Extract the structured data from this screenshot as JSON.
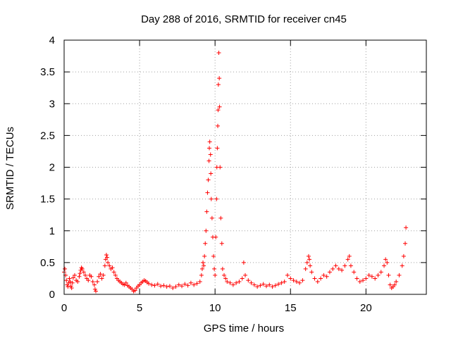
{
  "chart_data": {
    "type": "scatter",
    "title": "Day 288 of 2016, SRMTID for receiver cn45",
    "xlabel": "GPS time / hours",
    "ylabel": "SRMTID / TECUs",
    "xlim": [
      0,
      24
    ],
    "ylim": [
      0,
      4
    ],
    "xticks": [
      0,
      5,
      10,
      15,
      20
    ],
    "yticks": [
      0,
      0.5,
      1,
      1.5,
      2,
      2.5,
      3,
      3.5,
      4
    ],
    "xtick_labels": [
      "0",
      "5",
      "10",
      "15",
      "20"
    ],
    "ytick_labels": [
      "0",
      "0.5",
      "1",
      "1.5",
      "2",
      "2.5",
      "3",
      "3.5",
      "4"
    ],
    "grid": true,
    "marker": "+",
    "color": "#ff0000",
    "series": [
      {
        "name": "SRMTID",
        "points": [
          [
            0.0,
            0.35
          ],
          [
            0.05,
            0.4
          ],
          [
            0.1,
            0.3
          ],
          [
            0.15,
            0.22
          ],
          [
            0.2,
            0.15
          ],
          [
            0.25,
            0.12
          ],
          [
            0.3,
            0.18
          ],
          [
            0.35,
            0.25
          ],
          [
            0.4,
            0.2
          ],
          [
            0.45,
            0.13
          ],
          [
            0.5,
            0.1
          ],
          [
            0.55,
            0.18
          ],
          [
            0.6,
            0.26
          ],
          [
            0.7,
            0.3
          ],
          [
            0.8,
            0.22
          ],
          [
            0.9,
            0.2
          ],
          [
            1.0,
            0.28
          ],
          [
            1.05,
            0.33
          ],
          [
            1.1,
            0.38
          ],
          [
            1.15,
            0.42
          ],
          [
            1.2,
            0.4
          ],
          [
            1.3,
            0.35
          ],
          [
            1.4,
            0.3
          ],
          [
            1.5,
            0.25
          ],
          [
            1.6,
            0.22
          ],
          [
            1.7,
            0.3
          ],
          [
            1.8,
            0.28
          ],
          [
            1.9,
            0.2
          ],
          [
            2.0,
            0.15
          ],
          [
            2.05,
            0.08
          ],
          [
            2.1,
            0.05
          ],
          [
            2.2,
            0.2
          ],
          [
            2.3,
            0.28
          ],
          [
            2.4,
            0.32
          ],
          [
            2.5,
            0.25
          ],
          [
            2.6,
            0.3
          ],
          [
            2.7,
            0.45
          ],
          [
            2.75,
            0.55
          ],
          [
            2.8,
            0.62
          ],
          [
            2.85,
            0.58
          ],
          [
            2.9,
            0.5
          ],
          [
            3.0,
            0.45
          ],
          [
            3.1,
            0.4
          ],
          [
            3.2,
            0.42
          ],
          [
            3.3,
            0.35
          ],
          [
            3.4,
            0.3
          ],
          [
            3.5,
            0.25
          ],
          [
            3.6,
            0.22
          ],
          [
            3.7,
            0.2
          ],
          [
            3.8,
            0.18
          ],
          [
            3.9,
            0.16
          ],
          [
            4.0,
            0.15
          ],
          [
            4.1,
            0.18
          ],
          [
            4.2,
            0.14
          ],
          [
            4.3,
            0.12
          ],
          [
            4.4,
            0.1
          ],
          [
            4.5,
            0.08
          ],
          [
            4.6,
            0.05
          ],
          [
            4.7,
            0.06
          ],
          [
            4.8,
            0.1
          ],
          [
            4.9,
            0.13
          ],
          [
            5.0,
            0.15
          ],
          [
            5.1,
            0.18
          ],
          [
            5.2,
            0.2
          ],
          [
            5.3,
            0.22
          ],
          [
            5.4,
            0.21
          ],
          [
            5.5,
            0.19
          ],
          [
            5.6,
            0.17
          ],
          [
            5.8,
            0.15
          ],
          [
            6.0,
            0.14
          ],
          [
            6.2,
            0.16
          ],
          [
            6.4,
            0.13
          ],
          [
            6.6,
            0.14
          ],
          [
            6.8,
            0.12
          ],
          [
            7.0,
            0.13
          ],
          [
            7.2,
            0.1
          ],
          [
            7.4,
            0.12
          ],
          [
            7.6,
            0.15
          ],
          [
            7.8,
            0.13
          ],
          [
            8.0,
            0.16
          ],
          [
            8.2,
            0.14
          ],
          [
            8.4,
            0.18
          ],
          [
            8.6,
            0.15
          ],
          [
            8.8,
            0.17
          ],
          [
            9.0,
            0.2
          ],
          [
            9.1,
            0.3
          ],
          [
            9.15,
            0.4
          ],
          [
            9.2,
            0.5
          ],
          [
            9.25,
            0.45
          ],
          [
            9.3,
            0.6
          ],
          [
            9.35,
            0.8
          ],
          [
            9.4,
            1.0
          ],
          [
            9.45,
            1.3
          ],
          [
            9.5,
            1.6
          ],
          [
            9.55,
            1.8
          ],
          [
            9.6,
            2.1
          ],
          [
            9.62,
            2.3
          ],
          [
            9.65,
            2.4
          ],
          [
            9.7,
            2.2
          ],
          [
            9.72,
            1.9
          ],
          [
            9.75,
            1.5
          ],
          [
            9.8,
            1.2
          ],
          [
            9.85,
            0.9
          ],
          [
            9.9,
            0.6
          ],
          [
            9.95,
            0.4
          ],
          [
            10.0,
            0.3
          ],
          [
            10.05,
            0.9
          ],
          [
            10.1,
            1.5
          ],
          [
            10.12,
            2.0
          ],
          [
            10.15,
            2.3
          ],
          [
            10.18,
            2.65
          ],
          [
            10.2,
            2.9
          ],
          [
            10.22,
            3.3
          ],
          [
            10.25,
            3.8
          ],
          [
            10.28,
            3.4
          ],
          [
            10.3,
            2.95
          ],
          [
            10.33,
            2.0
          ],
          [
            10.38,
            1.2
          ],
          [
            10.45,
            0.8
          ],
          [
            10.5,
            0.4
          ],
          [
            10.6,
            0.3
          ],
          [
            10.7,
            0.25
          ],
          [
            10.8,
            0.2
          ],
          [
            11.0,
            0.18
          ],
          [
            11.2,
            0.15
          ],
          [
            11.4,
            0.18
          ],
          [
            11.6,
            0.2
          ],
          [
            11.8,
            0.25
          ],
          [
            11.9,
            0.5
          ],
          [
            12.0,
            0.3
          ],
          [
            12.2,
            0.22
          ],
          [
            12.4,
            0.18
          ],
          [
            12.6,
            0.15
          ],
          [
            12.8,
            0.12
          ],
          [
            13.0,
            0.14
          ],
          [
            13.2,
            0.16
          ],
          [
            13.4,
            0.13
          ],
          [
            13.6,
            0.15
          ],
          [
            13.8,
            0.12
          ],
          [
            14.0,
            0.14
          ],
          [
            14.2,
            0.16
          ],
          [
            14.4,
            0.18
          ],
          [
            14.6,
            0.2
          ],
          [
            14.8,
            0.3
          ],
          [
            15.0,
            0.25
          ],
          [
            15.2,
            0.22
          ],
          [
            15.4,
            0.2
          ],
          [
            15.6,
            0.18
          ],
          [
            15.8,
            0.22
          ],
          [
            16.0,
            0.4
          ],
          [
            16.1,
            0.5
          ],
          [
            16.2,
            0.6
          ],
          [
            16.25,
            0.55
          ],
          [
            16.3,
            0.45
          ],
          [
            16.4,
            0.35
          ],
          [
            16.6,
            0.25
          ],
          [
            16.8,
            0.2
          ],
          [
            17.0,
            0.25
          ],
          [
            17.2,
            0.3
          ],
          [
            17.4,
            0.28
          ],
          [
            17.6,
            0.35
          ],
          [
            17.8,
            0.4
          ],
          [
            18.0,
            0.45
          ],
          [
            18.2,
            0.4
          ],
          [
            18.4,
            0.38
          ],
          [
            18.6,
            0.45
          ],
          [
            18.8,
            0.55
          ],
          [
            18.9,
            0.6
          ],
          [
            19.0,
            0.45
          ],
          [
            19.2,
            0.35
          ],
          [
            19.4,
            0.25
          ],
          [
            19.6,
            0.2
          ],
          [
            19.8,
            0.22
          ],
          [
            20.0,
            0.25
          ],
          [
            20.2,
            0.3
          ],
          [
            20.4,
            0.28
          ],
          [
            20.6,
            0.25
          ],
          [
            20.8,
            0.3
          ],
          [
            21.0,
            0.35
          ],
          [
            21.2,
            0.45
          ],
          [
            21.3,
            0.55
          ],
          [
            21.4,
            0.5
          ],
          [
            21.5,
            0.3
          ],
          [
            21.6,
            0.15
          ],
          [
            21.7,
            0.1
          ],
          [
            21.8,
            0.12
          ],
          [
            21.9,
            0.15
          ],
          [
            22.0,
            0.2
          ],
          [
            22.2,
            0.3
          ],
          [
            22.4,
            0.45
          ],
          [
            22.5,
            0.6
          ],
          [
            22.6,
            0.8
          ],
          [
            22.65,
            1.05
          ]
        ]
      }
    ]
  }
}
